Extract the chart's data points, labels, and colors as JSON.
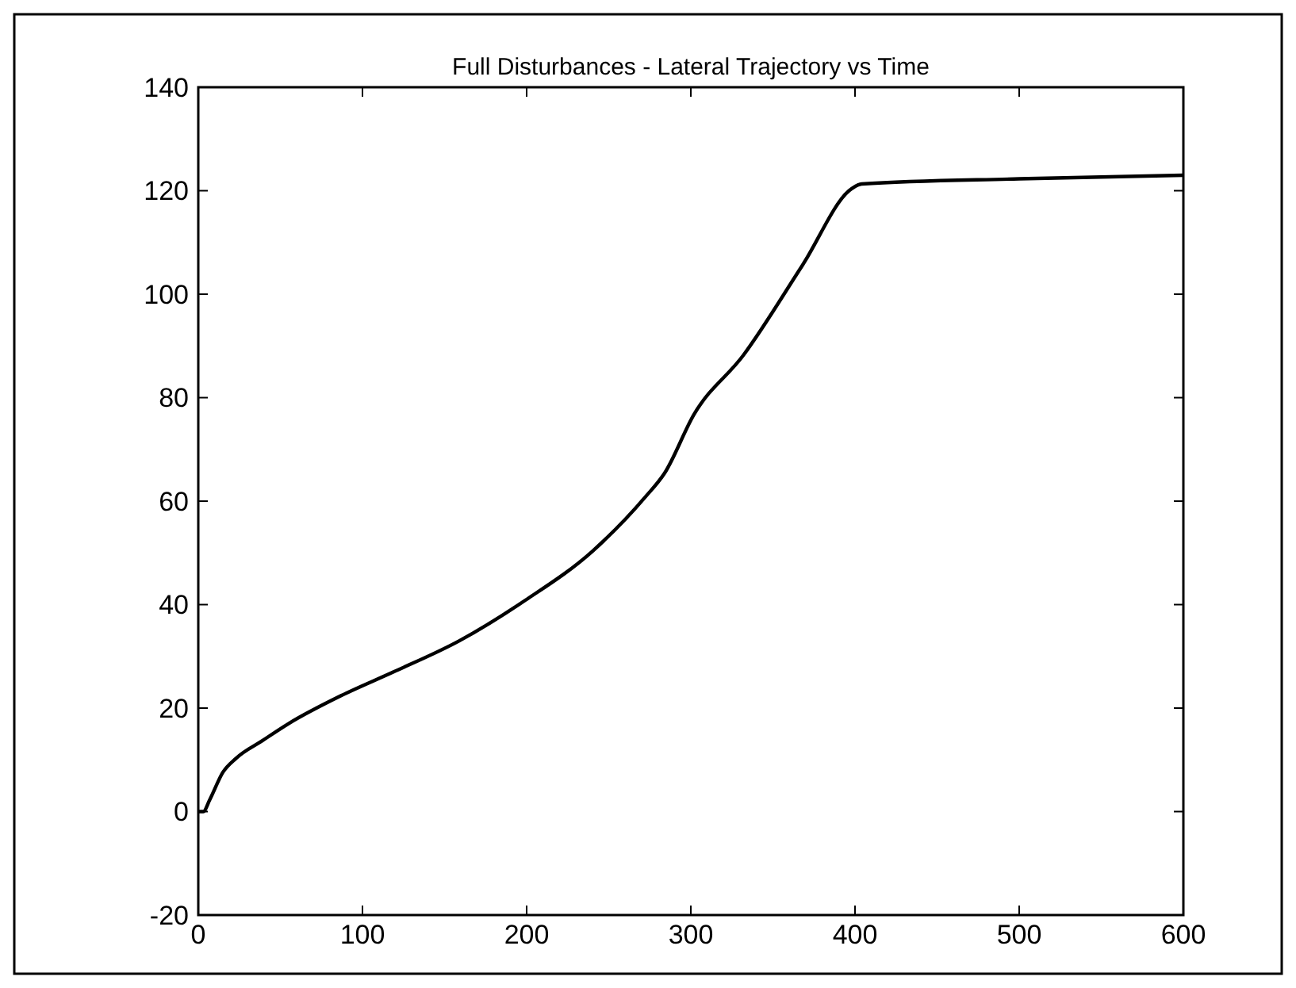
{
  "chart_data": {
    "type": "line",
    "title": "Full Disturbances - Lateral Trajectory vs Time",
    "x": [
      0,
      3,
      7,
      15,
      23,
      39,
      55,
      87,
      119,
      159,
      199,
      240,
      272,
      284,
      302,
      332,
      368,
      398,
      404,
      500,
      600
    ],
    "series": [
      {
        "color": "#000000",
        "values": [
          0,
          0,
          2.3,
          7.6,
          10.3,
          13.7,
          17,
          22.4,
          27,
          33,
          40.8,
          50.3,
          60.7,
          65.4,
          76.8,
          88.2,
          105.6,
          120.4,
          121.3,
          122.3,
          123
        ]
      }
    ],
    "xlim": [
      0,
      600
    ],
    "xticks": [
      0,
      100,
      200,
      300,
      400,
      500,
      600
    ],
    "ylim": [
      -20,
      140
    ],
    "yticks": [
      -20,
      0,
      20,
      40,
      60,
      80,
      100,
      120,
      140
    ],
    "grid": false
  }
}
